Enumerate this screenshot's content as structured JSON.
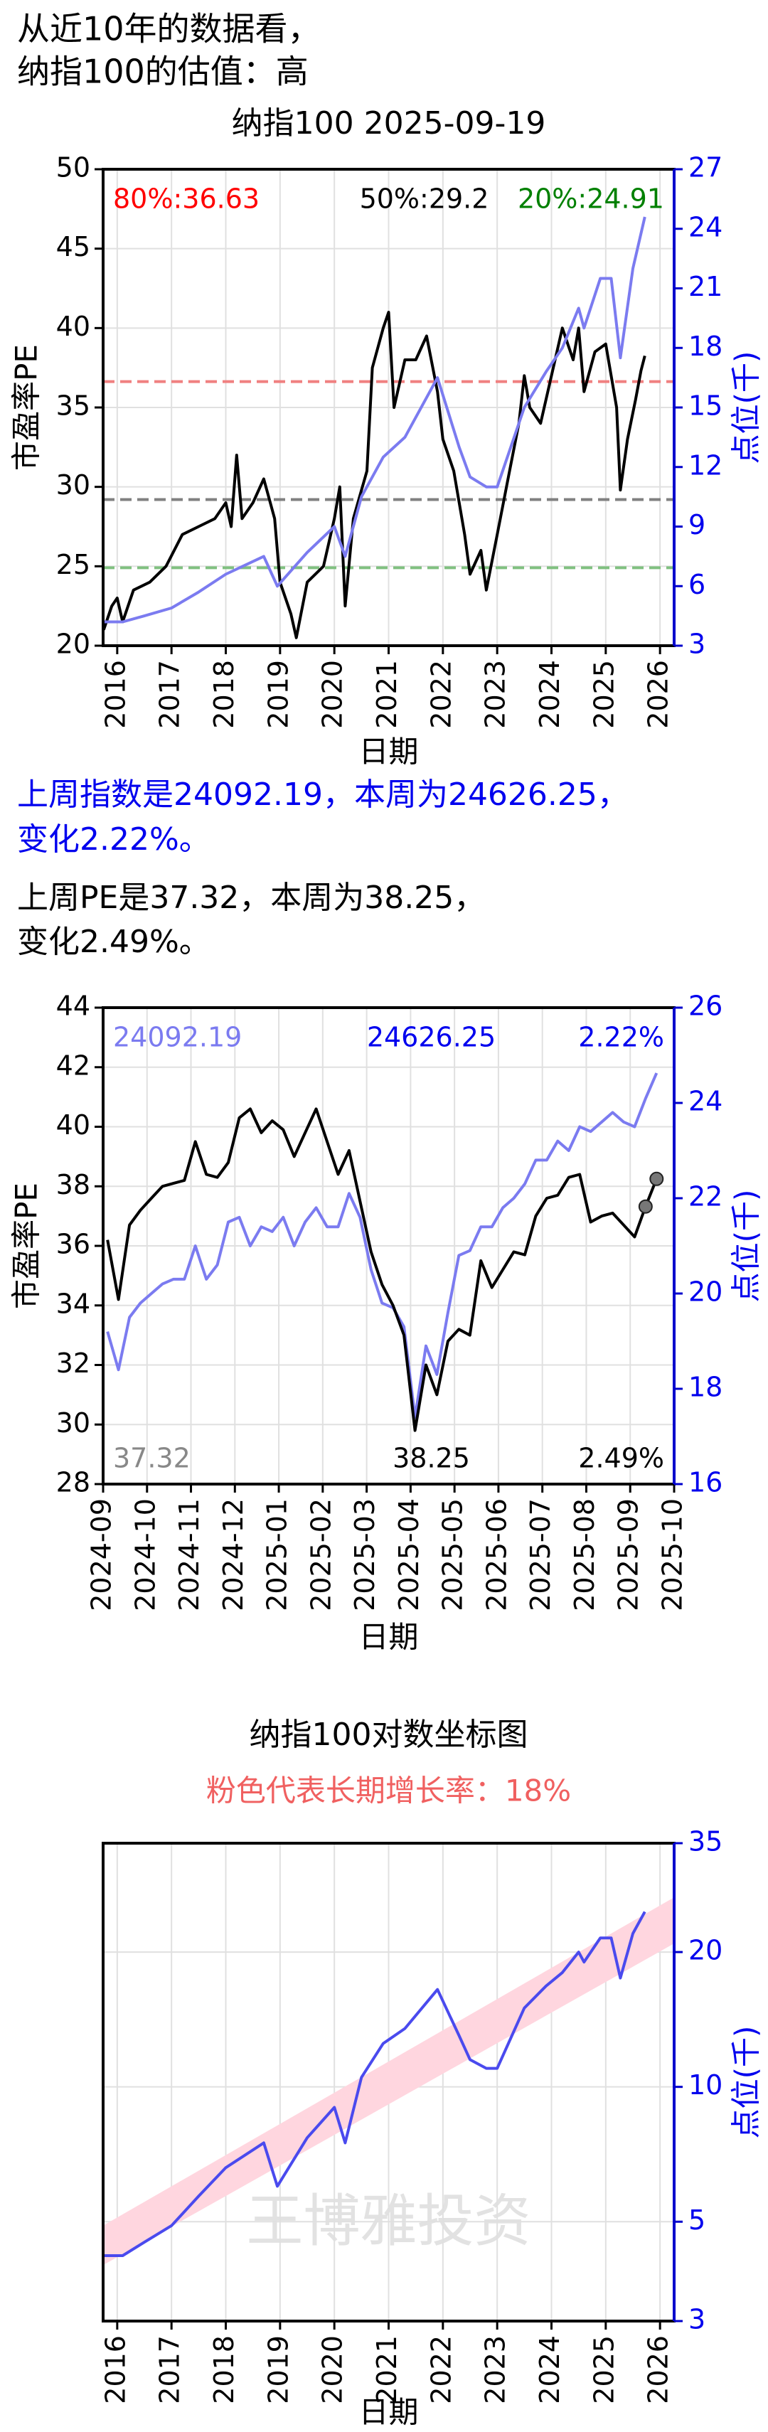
{
  "texts": {
    "intro": [
      "从近10年的数据看，",
      "纳指100的估值：高"
    ],
    "index_summary": [
      "上周指数是24092.19，本周为24626.25，",
      "变化2.22%。"
    ],
    "pe_summary": [
      "上周PE是37.32，本周为38.25，",
      "变化2.49%。"
    ]
  },
  "chart_data": [
    {
      "type": "line",
      "title": "纳指100 2025-09-19",
      "xlabel": "日期",
      "ylabel": "市盈率PE",
      "y2label": "点位(千)",
      "grid": true,
      "xlim": [
        2015.74,
        2026.26
      ],
      "xticks": [
        2016,
        2017,
        2018,
        2019,
        2020,
        2021,
        2022,
        2023,
        2024,
        2025,
        2026
      ],
      "ylim": [
        20,
        50
      ],
      "yticks": [
        20,
        25,
        30,
        35,
        40,
        45,
        50
      ],
      "y2lim": [
        3,
        27
      ],
      "y2ticks": [
        3,
        6,
        9,
        12,
        15,
        18,
        21,
        24,
        27
      ],
      "hlines": [
        {
          "value": 36.63,
          "color": "#f08080",
          "label": "80%:36.63",
          "label_color": "#ff0000",
          "align": "left"
        },
        {
          "value": 29.2,
          "color": "#808080",
          "label": "50%:29.2",
          "label_color": "#000000",
          "align": "center"
        },
        {
          "value": 24.91,
          "color": "#80c080",
          "label": "20%:24.91",
          "label_color": "#008000",
          "align": "right"
        }
      ],
      "series": [
        {
          "color": "#000000",
          "x": [
            2015.75,
            2015.9,
            2016.0,
            2016.1,
            2016.3,
            2016.6,
            2016.9,
            2017.2,
            2017.5,
            2017.8,
            2018.0,
            2018.1,
            2018.2,
            2018.3,
            2018.5,
            2018.7,
            2018.9,
            2019.0,
            2019.2,
            2019.3,
            2019.5,
            2019.8,
            2020.0,
            2020.1,
            2020.2,
            2020.35,
            2020.6,
            2020.7,
            2020.9,
            2021.0,
            2021.1,
            2021.3,
            2021.5,
            2021.7,
            2021.9,
            2022.0,
            2022.2,
            2022.4,
            2022.5,
            2022.7,
            2022.8,
            2023.0,
            2023.2,
            2023.4,
            2023.5,
            2023.6,
            2023.8,
            2024.0,
            2024.2,
            2024.4,
            2024.5,
            2024.6,
            2024.8,
            2025.0,
            2025.2,
            2025.27,
            2025.4,
            2025.55,
            2025.65,
            2025.72
          ],
          "values": [
            21,
            22.5,
            23,
            21.5,
            23.5,
            24,
            25,
            27,
            27.5,
            28,
            29,
            27.5,
            32,
            28,
            29,
            30.5,
            28,
            24,
            22,
            20.5,
            24,
            25,
            28,
            30,
            22.5,
            28,
            31,
            37.5,
            40,
            41,
            35,
            38,
            38,
            39.5,
            36,
            33,
            31,
            27,
            24.5,
            26,
            23.5,
            27,
            30.5,
            34,
            37,
            35,
            34,
            37,
            40,
            38,
            40,
            36,
            38.5,
            39,
            35,
            29.8,
            33,
            35.5,
            37.32,
            38.25
          ]
        },
        {
          "color": "#7b7bf0",
          "axis": "y2",
          "x": [
            2015.75,
            2016.1,
            2016.5,
            2017.0,
            2017.5,
            2018.0,
            2018.7,
            2018.95,
            2019.5,
            2020.0,
            2020.2,
            2020.5,
            2020.9,
            2021.3,
            2021.9,
            2022.3,
            2022.5,
            2022.8,
            2023.0,
            2023.5,
            2023.9,
            2024.2,
            2024.5,
            2024.6,
            2024.9,
            2025.1,
            2025.27,
            2025.5,
            2025.72
          ],
          "values": [
            4.2,
            4.2,
            4.5,
            4.9,
            5.7,
            6.6,
            7.5,
            6.0,
            7.7,
            9.0,
            7.5,
            10.5,
            12.5,
            13.5,
            16.5,
            13,
            11.5,
            11,
            11,
            15,
            16.8,
            18,
            20,
            19,
            21.5,
            21.5,
            17.5,
            22,
            24.6
          ]
        }
      ]
    },
    {
      "type": "line",
      "xlabel": "日期",
      "ylabel": "市盈率PE",
      "y2label": "点位(千)",
      "grid": true,
      "xlim": [
        0,
        13
      ],
      "xticks": [
        {
          "value": 0,
          "label": "2024-09"
        },
        {
          "value": 1,
          "label": "2024-10"
        },
        {
          "value": 2,
          "label": "2024-11"
        },
        {
          "value": 3,
          "label": "2024-12"
        },
        {
          "value": 4,
          "label": "2025-01"
        },
        {
          "value": 5,
          "label": "2025-02"
        },
        {
          "value": 6,
          "label": "2025-03"
        },
        {
          "value": 7,
          "label": "2025-04"
        },
        {
          "value": 8,
          "label": "2025-05"
        },
        {
          "value": 9,
          "label": "2025-06"
        },
        {
          "value": 10,
          "label": "2025-07"
        },
        {
          "value": 11,
          "label": "2025-08"
        },
        {
          "value": 12,
          "label": "2025-09"
        },
        {
          "value": 13,
          "label": "2025-10"
        }
      ],
      "ylim": [
        28,
        44
      ],
      "yticks": [
        28,
        30,
        32,
        34,
        36,
        38,
        40,
        42,
        44
      ],
      "y2lim": [
        16,
        26
      ],
      "y2ticks": [
        16,
        18,
        20,
        22,
        24,
        26
      ],
      "x": [
        0.1,
        0.35,
        0.6,
        0.85,
        1.1,
        1.35,
        1.6,
        1.85,
        2.1,
        2.35,
        2.6,
        2.85,
        3.1,
        3.35,
        3.6,
        3.85,
        4.1,
        4.35,
        4.6,
        4.85,
        5.1,
        5.35,
        5.6,
        5.85,
        6.1,
        6.35,
        6.6,
        6.85,
        7.1,
        7.35,
        7.6,
        7.85,
        8.1,
        8.35,
        8.6,
        8.85,
        9.1,
        9.35,
        9.6,
        9.85,
        10.1,
        10.35,
        10.6,
        10.85,
        11.1,
        11.35,
        11.6,
        11.85,
        12.1,
        12.35,
        12.6
      ],
      "series": [
        {
          "color": "#7b7bf0",
          "axis": "y2",
          "values": [
            19.2,
            18.4,
            19.5,
            19.8,
            20.0,
            20.2,
            20.3,
            20.3,
            21.0,
            20.3,
            20.6,
            21.5,
            21.6,
            21.0,
            21.4,
            21.3,
            21.6,
            21.0,
            21.5,
            21.8,
            21.4,
            21.4,
            22.1,
            21.6,
            20.5,
            19.8,
            19.7,
            19.3,
            17.4,
            18.9,
            18.3,
            19.6,
            20.8,
            20.9,
            21.4,
            21.4,
            21.8,
            22.0,
            22.3,
            22.8,
            22.8,
            23.2,
            23.0,
            23.5,
            23.4,
            23.6,
            23.8,
            23.6,
            23.5,
            24.09219,
            24.62625
          ]
        },
        {
          "color": "#000000",
          "marker_indices": [
            49,
            50
          ],
          "marker_color": "#777777",
          "values": [
            36.2,
            34.2,
            36.7,
            37.2,
            37.6,
            38.0,
            38.1,
            38.2,
            39.5,
            38.4,
            38.3,
            38.8,
            40.3,
            40.6,
            39.8,
            40.2,
            39.9,
            39.0,
            39.8,
            40.6,
            39.5,
            38.4,
            39.2,
            37.5,
            35.8,
            34.7,
            34.0,
            33.0,
            29.8,
            32.0,
            31.0,
            32.8,
            33.2,
            33.0,
            35.5,
            34.6,
            35.2,
            35.8,
            35.7,
            37.0,
            37.6,
            37.7,
            38.3,
            38.4,
            36.8,
            37.0,
            37.1,
            36.7,
            36.3,
            37.32,
            38.25
          ]
        }
      ],
      "annotations": [
        {
          "text": "24092.19",
          "color": "#7b7bf0",
          "row": "top",
          "align": "left"
        },
        {
          "text": "24626.25",
          "color": "#0000ee",
          "row": "top",
          "align": "center"
        },
        {
          "text": "2.22%",
          "color": "#0000ee",
          "row": "top",
          "align": "right"
        },
        {
          "text": "37.32",
          "color": "#888888",
          "row": "bottom",
          "align": "left"
        },
        {
          "text": "38.25",
          "color": "#000000",
          "row": "bottom",
          "align": "center"
        },
        {
          "text": "2.49%",
          "color": "#000000",
          "row": "bottom",
          "align": "right"
        }
      ]
    },
    {
      "type": "line",
      "title": "纳指100对数坐标图",
      "subtitle": "粉色代表长期增长率：18%",
      "xlabel": "日期",
      "y2label": "点位(千)",
      "yscale": "log",
      "grid": true,
      "watermark": "王博雅投资",
      "xlim": [
        2015.74,
        2026.26
      ],
      "xticks": [
        2016,
        2017,
        2018,
        2019,
        2020,
        2021,
        2022,
        2023,
        2024,
        2025,
        2026
      ],
      "y2lim": [
        3,
        35
      ],
      "y2ticks": [
        3,
        5,
        10,
        20,
        35
      ],
      "band": {
        "color": "#ffd6df",
        "x": [
          2015.74,
          2026.26
        ],
        "lower": [
          4.0,
          20.9
        ],
        "upper": [
          4.9,
          26.5
        ]
      },
      "series": [
        {
          "color": "#4a4aee",
          "axis": "y2",
          "x": [
            2015.75,
            2016.1,
            2016.5,
            2017.0,
            2017.5,
            2018.0,
            2018.7,
            2018.95,
            2019.5,
            2020.0,
            2020.2,
            2020.5,
            2020.9,
            2021.3,
            2021.9,
            2022.3,
            2022.5,
            2022.8,
            2023.0,
            2023.5,
            2023.9,
            2024.2,
            2024.5,
            2024.6,
            2024.9,
            2025.1,
            2025.27,
            2025.5,
            2025.72
          ],
          "values": [
            4.2,
            4.2,
            4.5,
            4.9,
            5.7,
            6.6,
            7.5,
            6.0,
            7.7,
            9.0,
            7.5,
            10.5,
            12.5,
            13.5,
            16.5,
            13,
            11.5,
            11,
            11,
            15,
            16.8,
            18,
            20,
            19,
            21.5,
            21.5,
            17.5,
            22,
            24.6
          ]
        }
      ]
    }
  ]
}
